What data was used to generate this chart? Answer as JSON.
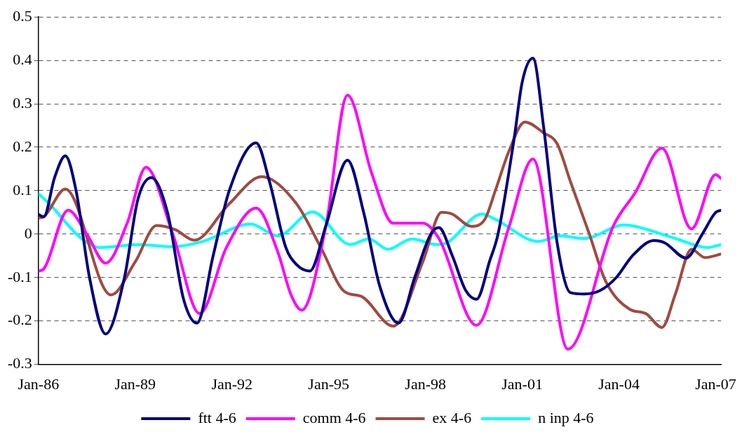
{
  "chart_data": {
    "type": "line",
    "xlim": [
      "1986-01",
      "2007-03"
    ],
    "xticks": [
      {
        "value": "1986-01",
        "label": "Jan-86"
      },
      {
        "value": "1989-01",
        "label": "Jan-89"
      },
      {
        "value": "1992-01",
        "label": "Jan-92"
      },
      {
        "value": "1995-01",
        "label": "Jan-95"
      },
      {
        "value": "1998-01",
        "label": "Jan-98"
      },
      {
        "value": "2001-01",
        "label": "Jan-01"
      },
      {
        "value": "2004-01",
        "label": "Jan-04"
      },
      {
        "value": "2007-01",
        "label": "Jan-07"
      }
    ],
    "ylim": [
      -0.3,
      0.5
    ],
    "yticks": [
      -0.3,
      -0.2,
      -0.1,
      0,
      0.1,
      0.2,
      0.3,
      0.4,
      0.5
    ],
    "grid": "y",
    "legend": "bottom",
    "marker": "none",
    "line_style": "solid",
    "series": [
      {
        "name": "ftt 4-6",
        "color": "#000080",
        "x": [
          "1986-01",
          "1986-03",
          "1986-07",
          "1986-11",
          "1987-03",
          "1987-08",
          "1988-02",
          "1988-09",
          "1989-02",
          "1989-07",
          "1990-01",
          "1990-07",
          "1990-12",
          "1991-06",
          "1991-12",
          "1992-10",
          "1993-03",
          "1993-09",
          "1994-01",
          "1994-06",
          "1994-12",
          "1995-08",
          "1996-02",
          "1996-08",
          "1997-03",
          "1997-09",
          "1998-03",
          "1998-06",
          "1998-11",
          "1999-04",
          "1999-08",
          "2000-01",
          "2000-04",
          "2000-10",
          "2001-01",
          "2001-05",
          "2001-09",
          "2002-02",
          "2002-07",
          "2002-12",
          "2003-06",
          "2003-12",
          "2004-06",
          "2005-02",
          "2005-06",
          "2006-02",
          "2006-08",
          "2007-01",
          "2007-03"
        ],
        "values": [
          0.045,
          0.04,
          0.13,
          0.18,
          0.1,
          -0.1,
          -0.23,
          -0.1,
          0.08,
          0.13,
          0.05,
          -0.15,
          -0.205,
          -0.05,
          0.1,
          0.21,
          0.12,
          -0.03,
          -0.07,
          -0.085,
          0.02,
          0.17,
          0.05,
          -0.12,
          -0.205,
          -0.1,
          0.0,
          0.015,
          -0.05,
          -0.13,
          -0.15,
          -0.06,
          0.0,
          0.22,
          0.35,
          0.405,
          0.245,
          -0.02,
          -0.135,
          -0.138,
          -0.13,
          -0.1,
          -0.05,
          -0.015,
          -0.02,
          -0.055,
          0.0,
          0.05,
          0.055
        ]
      },
      {
        "name": "comm 4-6",
        "color": "#ff00ff",
        "x": [
          "1986-01",
          "1986-03",
          "1986-12",
          "1987-07",
          "1988-02",
          "1988-10",
          "1989-05",
          "1990-03",
          "1991-01",
          "1991-11",
          "1992-10",
          "1993-06",
          "1993-11",
          "1994-03",
          "1994-12",
          "1995-08",
          "1996-05",
          "1997-01",
          "1997-12",
          "1998-06",
          "1999-08",
          "2000-08",
          "2001-05",
          "2002-06",
          "2003-11",
          "2004-07",
          "2005-05",
          "2006-04",
          "2007-01",
          "2007-03"
        ],
        "values": [
          -0.085,
          -0.08,
          0.055,
          0.0,
          -0.067,
          0.025,
          0.154,
          0.0,
          -0.183,
          -0.03,
          0.06,
          -0.04,
          -0.14,
          -0.175,
          0.02,
          0.32,
          0.14,
          0.025,
          0.025,
          -0.01,
          -0.21,
          0.015,
          0.173,
          -0.265,
          0.02,
          0.095,
          0.198,
          0.012,
          0.137,
          0.128
        ]
      },
      {
        "name": "ex 4-6",
        "color": "#a04a40",
        "x": [
          "1986-01",
          "1986-03",
          "1986-11",
          "1988-04",
          "1989-01",
          "1989-09",
          "1990-04",
          "1990-11",
          "1991-12",
          "1992-12",
          "1994-01",
          "1994-10",
          "1995-07",
          "1996-01",
          "1997-01",
          "1997-12",
          "1998-07",
          "1998-11",
          "1999-06",
          "1999-11",
          "2000-03",
          "2000-08",
          "2001-02",
          "2001-09",
          "2002-02",
          "2002-07",
          "2003-02",
          "2003-08",
          "2004-05",
          "2004-11",
          "2005-05",
          "2005-10",
          "2006-04",
          "2006-09",
          "2007-03"
        ],
        "values": [
          0.037,
          0.04,
          0.104,
          -0.14,
          -0.064,
          0.02,
          0.01,
          -0.014,
          0.07,
          0.132,
          0.07,
          -0.03,
          -0.133,
          -0.143,
          -0.212,
          -0.064,
          0.05,
          0.046,
          0.018,
          0.033,
          0.1,
          0.19,
          0.258,
          0.233,
          0.208,
          0.12,
          0.0,
          -0.108,
          -0.173,
          -0.183,
          -0.215,
          -0.138,
          -0.035,
          -0.054,
          -0.046
        ]
      },
      {
        "name": "n inp 4-6",
        "color": "#00ffff",
        "x": [
          "1986-01",
          "1986-05",
          "1987-05",
          "1987-12",
          "1989-02",
          "1990-03",
          "1991-02",
          "1992-08",
          "1993-06",
          "1994-07",
          "1995-09",
          "1996-04",
          "1996-11",
          "1997-08",
          "1998-05",
          "1998-09",
          "1999-10",
          "2000-03",
          "2001-07",
          "2002-03",
          "2002-12",
          "2004-03",
          "2004-07",
          "2005-10",
          "2006-10",
          "2007-03"
        ],
        "values": [
          0.093,
          0.07,
          -0.01,
          -0.031,
          -0.024,
          -0.029,
          -0.017,
          0.023,
          -0.004,
          0.051,
          -0.024,
          -0.011,
          -0.035,
          -0.011,
          -0.024,
          -0.02,
          0.046,
          0.034,
          -0.017,
          -0.004,
          -0.01,
          0.021,
          0.018,
          -0.01,
          -0.031,
          -0.024
        ]
      }
    ]
  }
}
